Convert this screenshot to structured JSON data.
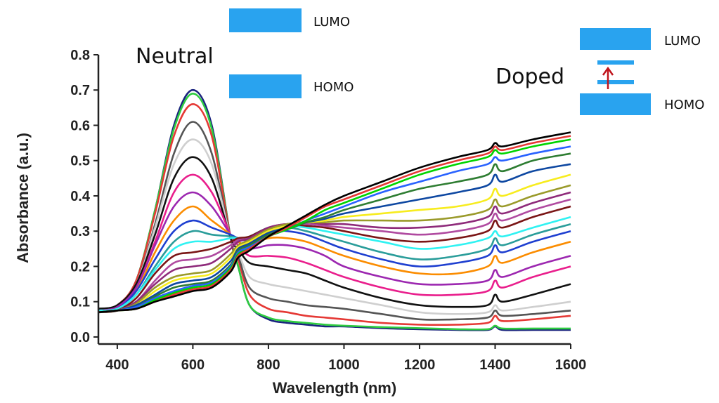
{
  "annotations": {
    "neutral": "Neutral",
    "doped": "Doped",
    "neutral_lumo": "LUMO",
    "neutral_homo": "HOMO",
    "doped_lumo": "LUMO",
    "doped_homo": "HOMO"
  },
  "colors": {
    "level_bar": "#29a3ef",
    "polaron_arrow": "#c0141c",
    "axis": "#222222"
  },
  "chart_data": {
    "type": "line",
    "title": "",
    "xlabel": "Wavelength (nm)",
    "ylabel": "Absorbance (a.u.)",
    "xlim": [
      350,
      1600
    ],
    "ylim": [
      -0.02,
      0.8
    ],
    "xticks": [
      400,
      600,
      800,
      1000,
      1200,
      1400,
      1600
    ],
    "yticks": [
      0.0,
      0.1,
      0.2,
      0.3,
      0.4,
      0.5,
      0.6,
      0.7,
      0.8
    ],
    "ytick_labels": [
      "0.0",
      "0.1",
      "0.2",
      "0.3",
      "0.4",
      "0.5",
      "0.6",
      "0.7",
      "0.8"
    ],
    "grid": false,
    "legend": "none",
    "x": [
      350,
      400,
      450,
      500,
      550,
      600,
      650,
      700,
      720,
      750,
      800,
      850,
      900,
      950,
      1000,
      1100,
      1200,
      1300,
      1380,
      1400,
      1420,
      1500,
      1600
    ],
    "series": [
      {
        "color": "#1a237e",
        "values": [
          0.08,
          0.09,
          0.16,
          0.36,
          0.6,
          0.7,
          0.6,
          0.28,
          0.2,
          0.09,
          0.05,
          0.04,
          0.035,
          0.03,
          0.03,
          0.025,
          0.022,
          0.02,
          0.02,
          0.03,
          0.02,
          0.02,
          0.02
        ]
      },
      {
        "color": "#2ecc40",
        "values": [
          0.08,
          0.09,
          0.16,
          0.36,
          0.59,
          0.69,
          0.59,
          0.28,
          0.2,
          0.09,
          0.055,
          0.045,
          0.04,
          0.035,
          0.032,
          0.028,
          0.025,
          0.022,
          0.022,
          0.032,
          0.024,
          0.024,
          0.024
        ]
      },
      {
        "color": "#e53935",
        "values": [
          0.08,
          0.09,
          0.16,
          0.35,
          0.57,
          0.66,
          0.57,
          0.28,
          0.22,
          0.12,
          0.08,
          0.07,
          0.06,
          0.055,
          0.05,
          0.04,
          0.035,
          0.035,
          0.04,
          0.06,
          0.045,
          0.05,
          0.06
        ]
      },
      {
        "color": "#555555",
        "values": [
          0.08,
          0.09,
          0.15,
          0.32,
          0.52,
          0.61,
          0.52,
          0.28,
          0.23,
          0.14,
          0.11,
          0.1,
          0.09,
          0.085,
          0.08,
          0.065,
          0.05,
          0.05,
          0.055,
          0.075,
          0.06,
          0.065,
          0.075
        ]
      },
      {
        "color": "#cfcfcf",
        "values": [
          0.08,
          0.09,
          0.15,
          0.31,
          0.49,
          0.56,
          0.49,
          0.28,
          0.24,
          0.17,
          0.15,
          0.14,
          0.13,
          0.12,
          0.11,
          0.09,
          0.07,
          0.065,
          0.07,
          0.09,
          0.075,
          0.085,
          0.1
        ]
      },
      {
        "color": "#111111",
        "values": [
          0.08,
          0.09,
          0.15,
          0.29,
          0.45,
          0.51,
          0.45,
          0.28,
          0.25,
          0.21,
          0.2,
          0.19,
          0.18,
          0.16,
          0.14,
          0.11,
          0.09,
          0.085,
          0.09,
          0.12,
          0.1,
          0.12,
          0.15
        ]
      },
      {
        "color": "#e91e8c",
        "values": [
          0.075,
          0.085,
          0.14,
          0.27,
          0.41,
          0.46,
          0.41,
          0.29,
          0.26,
          0.23,
          0.23,
          0.225,
          0.21,
          0.19,
          0.17,
          0.14,
          0.12,
          0.12,
          0.13,
          0.16,
          0.14,
          0.17,
          0.2
        ]
      },
      {
        "color": "#9c27b0",
        "values": [
          0.075,
          0.085,
          0.14,
          0.26,
          0.37,
          0.41,
          0.37,
          0.29,
          0.27,
          0.25,
          0.26,
          0.26,
          0.25,
          0.23,
          0.2,
          0.17,
          0.15,
          0.15,
          0.16,
          0.19,
          0.17,
          0.2,
          0.23
        ]
      },
      {
        "color": "#fb8c00",
        "values": [
          0.075,
          0.08,
          0.13,
          0.24,
          0.33,
          0.37,
          0.33,
          0.29,
          0.27,
          0.26,
          0.28,
          0.28,
          0.27,
          0.25,
          0.23,
          0.2,
          0.18,
          0.18,
          0.2,
          0.23,
          0.21,
          0.24,
          0.27
        ]
      },
      {
        "color": "#1e3fd0",
        "values": [
          0.075,
          0.08,
          0.13,
          0.22,
          0.3,
          0.33,
          0.31,
          0.29,
          0.28,
          0.275,
          0.3,
          0.3,
          0.29,
          0.27,
          0.25,
          0.22,
          0.2,
          0.21,
          0.23,
          0.26,
          0.24,
          0.27,
          0.3
        ]
      },
      {
        "color": "#2a9d9a",
        "values": [
          0.075,
          0.08,
          0.12,
          0.2,
          0.27,
          0.3,
          0.29,
          0.285,
          0.28,
          0.28,
          0.3,
          0.31,
          0.3,
          0.285,
          0.27,
          0.24,
          0.22,
          0.23,
          0.25,
          0.28,
          0.26,
          0.29,
          0.32
        ]
      },
      {
        "color": "#2ff2f2",
        "values": [
          0.075,
          0.08,
          0.12,
          0.19,
          0.25,
          0.27,
          0.27,
          0.28,
          0.28,
          0.285,
          0.31,
          0.315,
          0.31,
          0.3,
          0.29,
          0.27,
          0.25,
          0.26,
          0.28,
          0.3,
          0.285,
          0.31,
          0.34
        ]
      },
      {
        "color": "#7a1515",
        "values": [
          0.07,
          0.075,
          0.11,
          0.18,
          0.23,
          0.24,
          0.25,
          0.27,
          0.28,
          0.285,
          0.31,
          0.32,
          0.315,
          0.31,
          0.3,
          0.28,
          0.27,
          0.28,
          0.3,
          0.33,
          0.31,
          0.34,
          0.37
        ]
      },
      {
        "color": "#b04aa0",
        "values": [
          0.07,
          0.075,
          0.1,
          0.16,
          0.21,
          0.22,
          0.23,
          0.26,
          0.275,
          0.28,
          0.31,
          0.32,
          0.32,
          0.315,
          0.31,
          0.3,
          0.29,
          0.3,
          0.32,
          0.35,
          0.33,
          0.36,
          0.39
        ]
      },
      {
        "color": "#8e2a7a",
        "values": [
          0.07,
          0.075,
          0.1,
          0.15,
          0.19,
          0.2,
          0.21,
          0.25,
          0.27,
          0.28,
          0.31,
          0.32,
          0.325,
          0.32,
          0.32,
          0.31,
          0.31,
          0.32,
          0.34,
          0.37,
          0.35,
          0.38,
          0.41
        ]
      },
      {
        "color": "#9a9a2a",
        "values": [
          0.07,
          0.075,
          0.095,
          0.14,
          0.17,
          0.18,
          0.19,
          0.235,
          0.26,
          0.275,
          0.305,
          0.32,
          0.325,
          0.325,
          0.33,
          0.33,
          0.33,
          0.34,
          0.36,
          0.39,
          0.37,
          0.4,
          0.43
        ]
      },
      {
        "color": "#f7ec1e",
        "values": [
          0.07,
          0.075,
          0.09,
          0.13,
          0.16,
          0.17,
          0.18,
          0.225,
          0.255,
          0.27,
          0.3,
          0.315,
          0.325,
          0.33,
          0.34,
          0.35,
          0.36,
          0.37,
          0.39,
          0.42,
          0.4,
          0.43,
          0.46
        ]
      },
      {
        "color": "#0d47a1",
        "values": [
          0.07,
          0.075,
          0.09,
          0.12,
          0.15,
          0.16,
          0.17,
          0.215,
          0.25,
          0.265,
          0.295,
          0.31,
          0.325,
          0.335,
          0.35,
          0.37,
          0.39,
          0.41,
          0.43,
          0.46,
          0.44,
          0.47,
          0.49
        ]
      },
      {
        "color": "#2e7d32",
        "values": [
          0.07,
          0.075,
          0.085,
          0.115,
          0.14,
          0.15,
          0.16,
          0.205,
          0.245,
          0.26,
          0.29,
          0.305,
          0.325,
          0.34,
          0.36,
          0.39,
          0.42,
          0.44,
          0.46,
          0.49,
          0.47,
          0.5,
          0.52
        ]
      },
      {
        "color": "#2962ff",
        "values": [
          0.07,
          0.075,
          0.085,
          0.11,
          0.13,
          0.145,
          0.155,
          0.2,
          0.24,
          0.255,
          0.285,
          0.305,
          0.33,
          0.35,
          0.37,
          0.41,
          0.44,
          0.47,
          0.49,
          0.51,
          0.5,
          0.52,
          0.54
        ]
      },
      {
        "color": "#00d400",
        "values": [
          0.07,
          0.075,
          0.08,
          0.105,
          0.125,
          0.14,
          0.15,
          0.195,
          0.235,
          0.25,
          0.285,
          0.305,
          0.33,
          0.36,
          0.38,
          0.42,
          0.46,
          0.49,
          0.51,
          0.53,
          0.52,
          0.54,
          0.56
        ]
      },
      {
        "color": "#e53935",
        "values": [
          0.07,
          0.075,
          0.08,
          0.1,
          0.12,
          0.135,
          0.145,
          0.19,
          0.23,
          0.25,
          0.285,
          0.31,
          0.34,
          0.37,
          0.39,
          0.43,
          0.47,
          0.5,
          0.52,
          0.54,
          0.53,
          0.55,
          0.57
        ]
      },
      {
        "color": "#000000",
        "values": [
          0.07,
          0.075,
          0.08,
          0.1,
          0.115,
          0.13,
          0.14,
          0.185,
          0.225,
          0.245,
          0.285,
          0.315,
          0.345,
          0.375,
          0.4,
          0.44,
          0.48,
          0.51,
          0.53,
          0.55,
          0.54,
          0.56,
          0.58
        ]
      }
    ]
  }
}
